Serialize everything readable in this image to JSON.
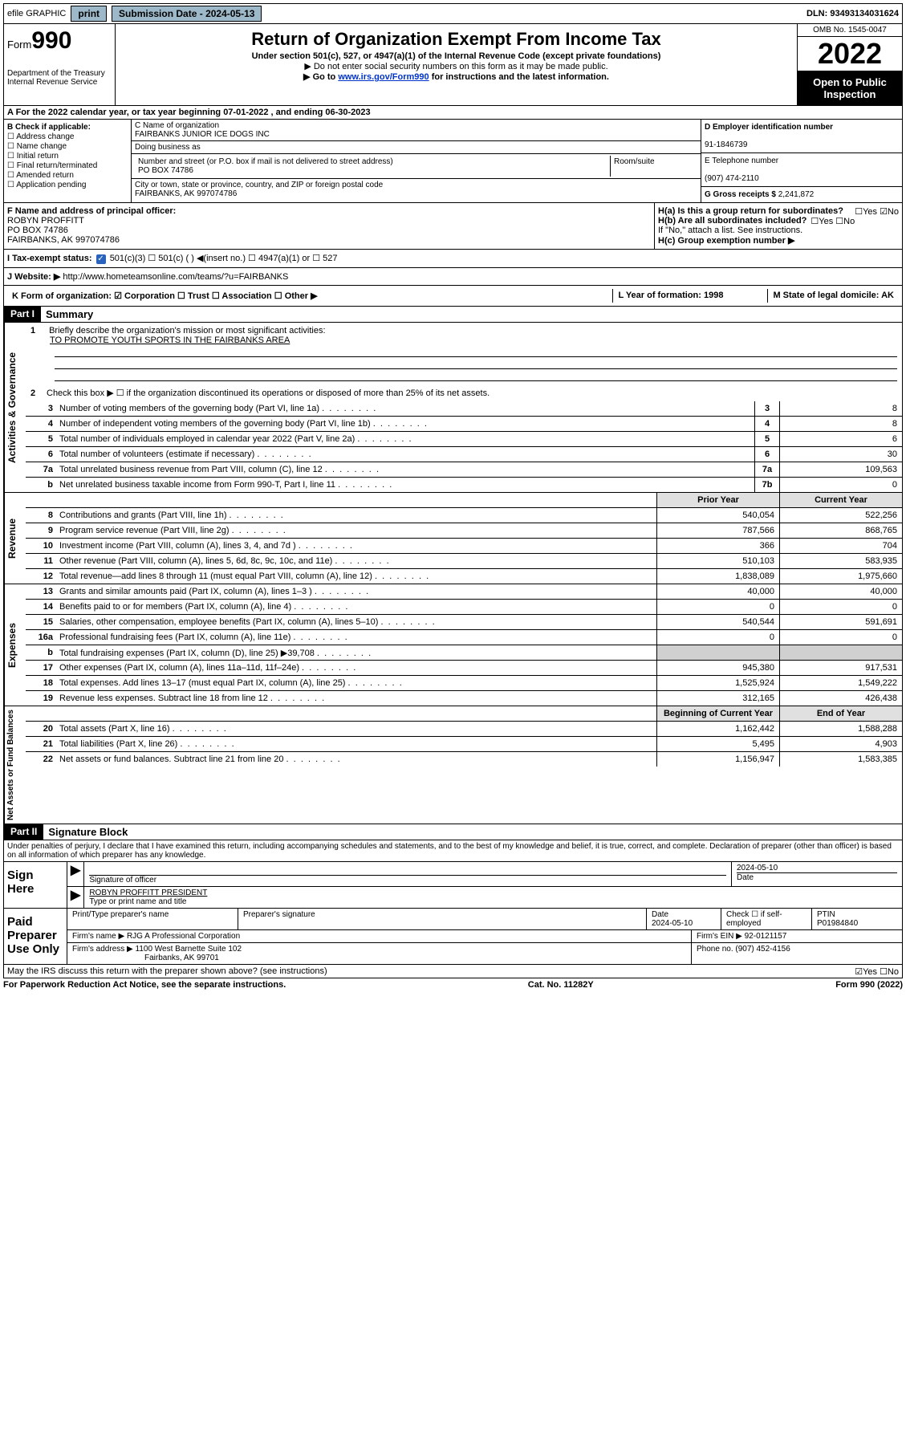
{
  "topbar": {
    "efile": "efile GRAPHIC",
    "print": "print",
    "subdate_lbl": "Submission Date - ",
    "subdate": "2024-05-13",
    "dln_lbl": "DLN: ",
    "dln": "93493134031624"
  },
  "header": {
    "form_prefix": "Form",
    "form_num": "990",
    "dept": "Department of the Treasury",
    "irs": "Internal Revenue Service",
    "title": "Return of Organization Exempt From Income Tax",
    "sub": "Under section 501(c), 527, or 4947(a)(1) of the Internal Revenue Code (except private foundations)",
    "note1": "▶ Do not enter social security numbers on this form as it may be made public.",
    "note2_pre": "▶ Go to ",
    "note2_link": "www.irs.gov/Form990",
    "note2_post": " for instructions and the latest information.",
    "omb": "OMB No. 1545-0047",
    "year": "2022",
    "inspect": "Open to Public Inspection"
  },
  "lineA": "A For the 2022 calendar year, or tax year beginning 07-01-2022   , and ending 06-30-2023",
  "colB": {
    "hdr": "B Check if applicable:",
    "items": [
      "Address change",
      "Name change",
      "Initial return",
      "Final return/terminated",
      "Amended return",
      "Application pending"
    ]
  },
  "colC": {
    "name_lbl": "C Name of organization",
    "name": "FAIRBANKS JUNIOR ICE DOGS INC",
    "dba_lbl": "Doing business as",
    "addr_lbl": "Number and street (or P.O. box if mail is not delivered to street address)",
    "room_lbl": "Room/suite",
    "addr": "PO BOX 74786",
    "city_lbl": "City or town, state or province, country, and ZIP or foreign postal code",
    "city": "FAIRBANKS, AK  997074786"
  },
  "colD": {
    "ein_lbl": "D Employer identification number",
    "ein": "91-1846739",
    "tel_lbl": "E Telephone number",
    "tel": "(907) 474-2110",
    "gross_lbl": "G Gross receipts $ ",
    "gross": "2,241,872"
  },
  "block2": {
    "f_lbl": "F Name and address of principal officer:",
    "f_name": "ROBYN PROFFITT",
    "f_addr1": "PO BOX 74786",
    "f_addr2": "FAIRBANKS, AK  997074786",
    "ha": "H(a)  Is this a group return for subordinates?",
    "ha_ans": "☐Yes ☑No",
    "hb": "H(b)  Are all subordinates included?",
    "hb_ans": "☐Yes ☐No",
    "hb_note": "If \"No,\" attach a list. See instructions.",
    "hc": "H(c)  Group exemption number ▶"
  },
  "lineI": {
    "lbl": "I   Tax-exempt status:",
    "opts": "501(c)(3)    ☐  501(c) (  ) ◀(insert no.)    ☐  4947(a)(1) or  ☐  527"
  },
  "lineJ": {
    "lbl": "J   Website: ▶ ",
    "url": "http://www.hometeamsonline.com/teams/?u=FAIRBANKS"
  },
  "lineK": {
    "k": "K Form of organization:  ☑ Corporation  ☐ Trust  ☐ Association  ☐ Other ▶",
    "l": "L Year of formation: 1998",
    "m": "M State of legal domicile: AK"
  },
  "part1": {
    "hdr": "Part I",
    "title": "Summary",
    "q1": "Briefly describe the organization's mission or most significant activities:",
    "mission": "TO PROMOTE YOUTH SPORTS IN THE FAIRBANKS AREA",
    "q2": "Check this box ▶ ☐  if the organization discontinued its operations or disposed of more than 25% of its net assets.",
    "side_gov": "Activities & Governance",
    "side_rev": "Revenue",
    "side_exp": "Expenses",
    "side_net": "Net Assets or Fund Balances",
    "prior": "Prior Year",
    "current": "Current Year",
    "begin": "Beginning of Current Year",
    "end": "End of Year",
    "rows_gov": [
      {
        "n": "3",
        "d": "Number of voting members of the governing body (Part VI, line 1a)",
        "b": "3",
        "v": "8"
      },
      {
        "n": "4",
        "d": "Number of independent voting members of the governing body (Part VI, line 1b)",
        "b": "4",
        "v": "8"
      },
      {
        "n": "5",
        "d": "Total number of individuals employed in calendar year 2022 (Part V, line 2a)",
        "b": "5",
        "v": "6"
      },
      {
        "n": "6",
        "d": "Total number of volunteers (estimate if necessary)",
        "b": "6",
        "v": "30"
      },
      {
        "n": "7a",
        "d": "Total unrelated business revenue from Part VIII, column (C), line 12",
        "b": "7a",
        "v": "109,563"
      },
      {
        "n": "b",
        "d": "Net unrelated business taxable income from Form 990-T, Part I, line 11",
        "b": "7b",
        "v": "0"
      }
    ],
    "rows_rev": [
      {
        "n": "8",
        "d": "Contributions and grants (Part VIII, line 1h)",
        "p": "540,054",
        "c": "522,256"
      },
      {
        "n": "9",
        "d": "Program service revenue (Part VIII, line 2g)",
        "p": "787,566",
        "c": "868,765"
      },
      {
        "n": "10",
        "d": "Investment income (Part VIII, column (A), lines 3, 4, and 7d )",
        "p": "366",
        "c": "704"
      },
      {
        "n": "11",
        "d": "Other revenue (Part VIII, column (A), lines 5, 6d, 8c, 9c, 10c, and 11e)",
        "p": "510,103",
        "c": "583,935"
      },
      {
        "n": "12",
        "d": "Total revenue—add lines 8 through 11 (must equal Part VIII, column (A), line 12)",
        "p": "1,838,089",
        "c": "1,975,660"
      }
    ],
    "rows_exp": [
      {
        "n": "13",
        "d": "Grants and similar amounts paid (Part IX, column (A), lines 1–3 )",
        "p": "40,000",
        "c": "40,000"
      },
      {
        "n": "14",
        "d": "Benefits paid to or for members (Part IX, column (A), line 4)",
        "p": "0",
        "c": "0"
      },
      {
        "n": "15",
        "d": "Salaries, other compensation, employee benefits (Part IX, column (A), lines 5–10)",
        "p": "540,544",
        "c": "591,691"
      },
      {
        "n": "16a",
        "d": "Professional fundraising fees (Part IX, column (A), line 11e)",
        "p": "0",
        "c": "0"
      },
      {
        "n": "b",
        "d": "Total fundraising expenses (Part IX, column (D), line 25) ▶39,708",
        "p": "",
        "c": "",
        "grey": true
      },
      {
        "n": "17",
        "d": "Other expenses (Part IX, column (A), lines 11a–11d, 11f–24e)",
        "p": "945,380",
        "c": "917,531"
      },
      {
        "n": "18",
        "d": "Total expenses. Add lines 13–17 (must equal Part IX, column (A), line 25)",
        "p": "1,525,924",
        "c": "1,549,222"
      },
      {
        "n": "19",
        "d": "Revenue less expenses. Subtract line 18 from line 12",
        "p": "312,165",
        "c": "426,438"
      }
    ],
    "rows_net": [
      {
        "n": "20",
        "d": "Total assets (Part X, line 16)",
        "p": "1,162,442",
        "c": "1,588,288"
      },
      {
        "n": "21",
        "d": "Total liabilities (Part X, line 26)",
        "p": "5,495",
        "c": "4,903"
      },
      {
        "n": "22",
        "d": "Net assets or fund balances. Subtract line 21 from line 20",
        "p": "1,156,947",
        "c": "1,583,385"
      }
    ]
  },
  "part2": {
    "hdr": "Part II",
    "title": "Signature Block",
    "decl": "Under penalties of perjury, I declare that I have examined this return, including accompanying schedules and statements, and to the best of my knowledge and belief, it is true, correct, and complete. Declaration of preparer (other than officer) is based on all information of which preparer has any knowledge.",
    "sign": "Sign Here",
    "sig_officer": "Signature of officer",
    "sig_date": "2024-05-10",
    "date_lbl": "Date",
    "officer_name": "ROBYN PROFFITT PRESIDENT",
    "type_name": "Type or print name and title",
    "paid": "Paid Preparer Use Only",
    "prep_name_lbl": "Print/Type preparer's name",
    "prep_sig_lbl": "Preparer's signature",
    "prep_date_lbl": "Date",
    "prep_date": "2024-05-10",
    "self_emp": "Check ☐ if self-employed",
    "ptin_lbl": "PTIN",
    "ptin": "P01984840",
    "firm_name_lbl": "Firm's name    ▶ ",
    "firm_name": "RJG A Professional Corporation",
    "firm_ein_lbl": "Firm's EIN ▶ ",
    "firm_ein": "92-0121157",
    "firm_addr_lbl": "Firm's address ▶ ",
    "firm_addr1": "1100 West Barnette Suite 102",
    "firm_addr2": "Fairbanks, AK  99701",
    "phone_lbl": "Phone no. ",
    "phone": "(907) 452-4156",
    "may_discuss": "May the IRS discuss this return with the preparer shown above? (see instructions)",
    "may_ans": "☑Yes  ☐No"
  },
  "footer": {
    "pra": "For Paperwork Reduction Act Notice, see the separate instructions.",
    "cat": "Cat. No. 11282Y",
    "form": "Form 990 (2022)"
  }
}
